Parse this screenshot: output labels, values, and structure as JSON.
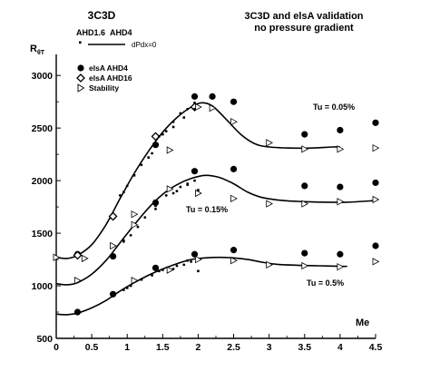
{
  "chart_data": {
    "type": "scatter",
    "title": "3C3D and elsA validation",
    "subtitle": "no pressure gradient",
    "header_left": "3C3D",
    "xlabel": "Me",
    "ylabel_main": "R",
    "ylabel_sub": "θT",
    "xlim": [
      0,
      4.5
    ],
    "ylim": [
      500,
      3200
    ],
    "x_ticks": [
      "0",
      "0.5",
      "1",
      "1.5",
      "2",
      "2.5",
      "3",
      "3.5",
      "4",
      "4.5"
    ],
    "y_ticks": [
      "500",
      "1000",
      "1500",
      "2000",
      "2500",
      "3000"
    ],
    "grid": false,
    "legend": {
      "position": "top-left",
      "entries": [
        {
          "label": "AHD1.6",
          "marker": "small-square"
        },
        {
          "label": "AHD4",
          "marker": "small-dot"
        },
        {
          "label": "dPdx=0",
          "marker": "line"
        },
        {
          "label": "elsA AHD4",
          "marker": "filled-circle"
        },
        {
          "label": "elsA AHD16",
          "marker": "open-diamond"
        },
        {
          "label": "Stability",
          "marker": "open-triangle"
        }
      ]
    },
    "annotations": [
      {
        "text": "Tu = 0.05%",
        "x": 3.65,
        "y": 2490
      },
      {
        "text": "Tu = 0.15%",
        "x": 1.85,
        "y": 1530
      },
      {
        "text": "Tu = 0.5%",
        "x": 3.55,
        "y": 1030
      }
    ],
    "series": [
      {
        "name": "dPdx=0",
        "style": "line",
        "groups": [
          {
            "x": [
              0,
              0.15,
              0.3,
              0.5,
              0.7,
              0.9,
              1.1,
              1.3,
              1.5,
              1.7,
              1.9,
              2.05,
              2.2,
              2.4,
              2.6,
              2.8,
              3.0,
              3.3,
              3.6,
              3.9,
              4.0
            ],
            "y": [
              1270,
              1260,
              1290,
              1390,
              1580,
              1830,
              2070,
              2280,
              2460,
              2600,
              2700,
              2740,
              2710,
              2580,
              2440,
              2350,
              2320,
              2310,
              2310,
              2320,
              2320
            ]
          },
          {
            "x": [
              0,
              0.15,
              0.3,
              0.5,
              0.7,
              0.9,
              1.1,
              1.3,
              1.5,
              1.7,
              1.9,
              2.1,
              2.3,
              2.5,
              2.7,
              2.9,
              3.2,
              3.5,
              3.8,
              4.1,
              4.5
            ],
            "y": [
              1020,
              1010,
              1030,
              1110,
              1240,
              1410,
              1580,
              1740,
              1870,
              1960,
              2020,
              2050,
              2030,
              1970,
              1890,
              1840,
              1810,
              1800,
              1795,
              1795,
              1810
            ]
          },
          {
            "x": [
              0,
              0.15,
              0.3,
              0.5,
              0.7,
              0.9,
              1.1,
              1.3,
              1.5,
              1.7,
              1.9,
              2.1,
              2.3,
              2.5,
              2.7,
              2.9,
              3.1,
              3.4,
              3.7,
              4.0,
              4.1
            ],
            "y": [
              730,
              725,
              740,
              790,
              860,
              950,
              1030,
              1100,
              1160,
              1210,
              1250,
              1265,
              1270,
              1265,
              1250,
              1225,
              1205,
              1195,
              1190,
              1185,
              1185
            ]
          }
        ]
      },
      {
        "name": "elsA AHD4",
        "style": "filled-circle",
        "x": [
          0.3,
          0.8,
          1.4,
          1.95,
          2.2,
          2.5,
          0.3,
          0.8,
          1.4,
          1.95,
          2.5,
          3.5,
          4.0,
          4.5,
          0.8,
          1.4,
          1.95,
          2.5,
          3.5,
          4.0,
          4.5,
          3.5,
          4.0,
          4.5
        ],
        "y": [
          1300,
          1280,
          2340,
          2800,
          2800,
          2750,
          750,
          1660,
          1790,
          2090,
          2110,
          1950,
          1940,
          1980,
          920,
          1170,
          1300,
          1340,
          1310,
          1300,
          1380,
          2440,
          2480,
          2550
        ]
      },
      {
        "name": "elsA AHD16",
        "style": "open-diamond",
        "x": [
          0.3,
          0.8,
          1.4,
          1.95
        ],
        "y": [
          1290,
          1660,
          2420,
          2700
        ]
      },
      {
        "name": "Stability",
        "style": "open-triangle",
        "x": [
          0,
          0.4,
          1.1,
          1.6,
          2.0,
          2.2,
          2.5,
          3.0,
          3.5,
          4.0,
          4.5,
          0.3,
          0.8,
          1.1,
          1.6,
          2.0,
          2.5,
          3.0,
          3.5,
          4.0,
          4.5,
          1.1,
          1.6,
          2.0,
          2.5,
          3.0,
          3.5,
          4.0,
          4.5
        ],
        "y": [
          1270,
          1260,
          1680,
          2290,
          2700,
          2690,
          2560,
          2360,
          2300,
          2300,
          2310,
          1050,
          1380,
          1580,
          1920,
          1880,
          1830,
          1780,
          1780,
          1800,
          1820,
          1050,
          1150,
          1250,
          1240,
          1200,
          1190,
          1180,
          1230
        ]
      },
      {
        "name": "AHD4",
        "style": "small-dot",
        "x": [
          0.9,
          1.0,
          1.2,
          1.35,
          1.45,
          1.55,
          1.65,
          1.75,
          1.85,
          1.95,
          0.95,
          1.05,
          1.25,
          1.4,
          1.55,
          1.65,
          1.75,
          1.85,
          1.95,
          0.95,
          1.05,
          1.2,
          1.35,
          1.5,
          1.65,
          1.8,
          1.9
        ],
        "y": [
          1860,
          1950,
          2150,
          2260,
          2420,
          2470,
          2560,
          2640,
          2680,
          2740,
          1420,
          1480,
          1650,
          1730,
          1860,
          1880,
          1940,
          1960,
          2000,
          960,
          1000,
          1060,
          1100,
          1150,
          1160,
          1200,
          1230
        ]
      },
      {
        "name": "AHD1.6",
        "style": "small-square",
        "x": [
          0.95,
          1.1,
          1.3,
          1.5,
          1.65,
          1.8,
          1.95,
          0.95,
          1.15,
          1.4,
          1.7,
          1.85,
          2.0,
          1.0,
          1.2,
          1.45,
          1.7,
          1.85,
          2.0
        ],
        "y": [
          1890,
          2050,
          2220,
          2440,
          2510,
          2600,
          2680,
          1430,
          1560,
          1760,
          1900,
          1970,
          1910,
          980,
          1060,
          1140,
          1190,
          1240,
          1140
        ]
      }
    ]
  }
}
